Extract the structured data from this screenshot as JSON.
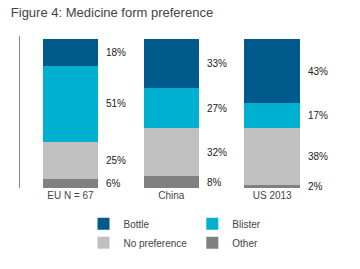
{
  "chart_data": {
    "type": "bar",
    "title": "Figure 4: Medicine form preference",
    "categories": [
      "EU N = 67",
      "China",
      "US 2013"
    ],
    "stacked": true,
    "data_labels": true,
    "tick_labels": "x",
    "grid": false,
    "legend": "bottom",
    "ylim": [
      0,
      102
    ],
    "yticks": [],
    "series": [
      {
        "name": "Other",
        "color": "#808080",
        "values": [
          6,
          8,
          2
        ],
        "value_labels": [
          "6%",
          "8%",
          "2%"
        ]
      },
      {
        "name": "No preference",
        "color": "#c0c0c0",
        "values": [
          25,
          32,
          38
        ],
        "value_labels": [
          "25%",
          "32%",
          "38%"
        ]
      },
      {
        "name": "Blister",
        "color": "#00b0d0",
        "values": [
          51,
          27,
          17
        ],
        "value_labels": [
          "51%",
          "27%",
          "17%"
        ]
      },
      {
        "name": "Bottle",
        "color": "#005a8b",
        "values": [
          18,
          33,
          43
        ],
        "value_labels": [
          "18%",
          "33%",
          "43%"
        ]
      }
    ]
  }
}
